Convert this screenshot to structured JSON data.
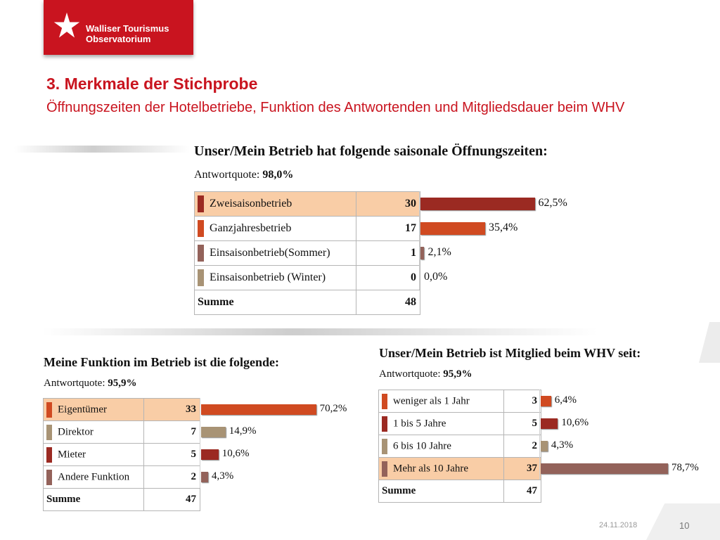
{
  "header": {
    "logo_line1": "Walliser Tourismus",
    "logo_line2": "Observatorium",
    "title": "3. Merkmale der Stichprobe",
    "subtitle": "Öffnungszeiten der Hotelbetriebe, Funktion des Antwortenden und Mitgliedsdauer beim WHV"
  },
  "colors": {
    "brand_red": "#c9141f",
    "highlight_row": "#f9cda6"
  },
  "chart_data": [
    {
      "type": "bar",
      "title": "Unser/Mein Betrieb hat folgende saisonale Öffnungszeiten:",
      "rate_label": "Antwortquote: ",
      "rate_value": "98,0%",
      "categories": [
        "Zweisaisonbetrieb",
        "Ganzjahresbetrieb",
        "Einsaisonbetrieb(Sommer)",
        "Einsaisonbetrieb (Winter)"
      ],
      "counts": [
        "30",
        "17",
        "1",
        "0"
      ],
      "values": [
        62.5,
        35.4,
        2.1,
        0.0
      ],
      "labels": [
        "62,5%",
        "35,4%",
        "2,1%",
        "0,0%"
      ],
      "colors": [
        "#9b2a22",
        "#d04a21",
        "#93625a",
        "#a89375"
      ],
      "highlight": [
        true,
        false,
        false,
        false
      ],
      "sum_label": "Summe",
      "sum_value": "48"
    },
    {
      "type": "bar",
      "title": "Meine Funktion im Betrieb ist die folgende:",
      "rate_label": "Antwortquote: ",
      "rate_value": "95,9%",
      "categories": [
        "Eigentümer",
        "Direktor",
        "Mieter",
        "Andere Funktion"
      ],
      "counts": [
        "33",
        "7",
        "5",
        "2"
      ],
      "values": [
        70.2,
        14.9,
        10.6,
        4.3
      ],
      "labels": [
        "70,2%",
        "14,9%",
        "10,6%",
        "4,3%"
      ],
      "colors": [
        "#d04a21",
        "#a89375",
        "#9b2a22",
        "#93625a"
      ],
      "highlight": [
        true,
        false,
        false,
        false
      ],
      "sum_label": "Summe",
      "sum_value": "47"
    },
    {
      "type": "bar",
      "title": "Unser/Mein Betrieb ist Mitglied beim WHV seit:",
      "rate_label": "Antwortquote: ",
      "rate_value": "95,9%",
      "categories": [
        "weniger als 1 Jahr",
        "1 bis 5 Jahre",
        "6 bis 10 Jahre",
        "Mehr als 10 Jahre"
      ],
      "counts": [
        "3",
        "5",
        "2",
        "37"
      ],
      "values": [
        6.4,
        10.6,
        4.3,
        78.7
      ],
      "labels": [
        "6,4%",
        "10,6%",
        "4,3%",
        "78,7%"
      ],
      "colors": [
        "#d04a21",
        "#9b2a22",
        "#a89375",
        "#93625a"
      ],
      "highlight": [
        false,
        false,
        false,
        true
      ],
      "sum_label": "Summe",
      "sum_value": "47"
    }
  ],
  "footer": {
    "date": "24.11.2018",
    "page": "10"
  }
}
